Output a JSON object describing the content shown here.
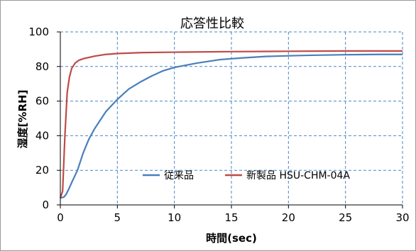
{
  "chart_data": {
    "type": "line",
    "title": "応答性比較",
    "xlabel": "時間(sec)",
    "ylabel": "湿度[%RH]",
    "xlim": [
      0,
      30
    ],
    "ylim": [
      0,
      100
    ],
    "x_ticks": [
      0,
      5,
      10,
      15,
      20,
      25,
      30
    ],
    "y_ticks": [
      0,
      20,
      40,
      60,
      80,
      100
    ],
    "x_tick_labels": [
      "0",
      "5",
      "10",
      "15",
      "20",
      "25",
      "30"
    ],
    "y_tick_labels": [
      "0",
      "20",
      "40",
      "60",
      "80",
      "100"
    ],
    "grid": true,
    "legend_position": "bottom-right",
    "series": [
      {
        "name": "従来品",
        "color": "#4a7ebb",
        "x": [
          0,
          0.3,
          0.5,
          0.8,
          1,
          1.5,
          2,
          2.5,
          3,
          4,
          5,
          6,
          7,
          8,
          9,
          10,
          12,
          14,
          16,
          18,
          20,
          22,
          25,
          28,
          30
        ],
        "y": [
          4,
          4.5,
          6,
          10,
          13,
          20,
          30,
          38,
          44,
          54,
          61,
          67,
          71,
          74.5,
          77.5,
          79.5,
          82,
          84,
          85,
          85.8,
          86.2,
          86.5,
          86.8,
          87,
          87
        ]
      },
      {
        "name": "新製品 HSU-CHM-04A",
        "color": "#be4b48",
        "x": [
          0,
          0.2,
          0.4,
          0.6,
          0.8,
          1,
          1.3,
          1.6,
          2,
          3,
          4,
          5,
          7,
          10,
          15,
          20,
          25,
          30
        ],
        "y": [
          4,
          8,
          40,
          65,
          74,
          79,
          82,
          83.5,
          84.5,
          86,
          87,
          87.5,
          88,
          88.3,
          88.6,
          88.8,
          89,
          89
        ]
      }
    ]
  }
}
